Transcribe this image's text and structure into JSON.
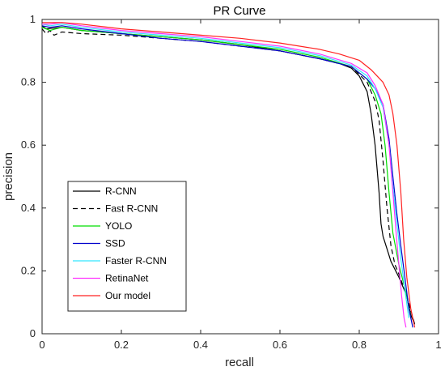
{
  "chart_data": {
    "type": "line",
    "title": "PR Curve",
    "xlabel": "recall",
    "ylabel": "precision",
    "xlim": [
      0,
      1
    ],
    "ylim": [
      0,
      1
    ],
    "xticks": [
      "0",
      "0.2",
      "0.4",
      "0.6",
      "0.8",
      "1"
    ],
    "yticks": [
      "0",
      "0.2",
      "0.4",
      "0.6",
      "0.8",
      "1"
    ],
    "grid": false,
    "legend_position": "bottom-left",
    "series": [
      {
        "name": "R-CNN",
        "color": "#000000",
        "dash": "solid",
        "points": [
          [
            0,
            0.98
          ],
          [
            0.01,
            0.97
          ],
          [
            0.05,
            0.975
          ],
          [
            0.1,
            0.965
          ],
          [
            0.2,
            0.955
          ],
          [
            0.3,
            0.945
          ],
          [
            0.4,
            0.935
          ],
          [
            0.5,
            0.92
          ],
          [
            0.6,
            0.9
          ],
          [
            0.7,
            0.875
          ],
          [
            0.75,
            0.86
          ],
          [
            0.78,
            0.845
          ],
          [
            0.8,
            0.82
          ],
          [
            0.82,
            0.77
          ],
          [
            0.83,
            0.7
          ],
          [
            0.84,
            0.6
          ],
          [
            0.85,
            0.45
          ],
          [
            0.855,
            0.35
          ],
          [
            0.86,
            0.31
          ],
          [
            0.87,
            0.27
          ],
          [
            0.88,
            0.23
          ],
          [
            0.9,
            0.18
          ],
          [
            0.92,
            0.12
          ],
          [
            0.93,
            0.06
          ],
          [
            0.94,
            0.03
          ]
        ]
      },
      {
        "name": "Fast R-CNN",
        "color": "#000000",
        "dash": "dashed",
        "points": [
          [
            0,
            0.97
          ],
          [
            0.01,
            0.955
          ],
          [
            0.02,
            0.965
          ],
          [
            0.03,
            0.95
          ],
          [
            0.05,
            0.96
          ],
          [
            0.1,
            0.955
          ],
          [
            0.2,
            0.95
          ],
          [
            0.3,
            0.94
          ],
          [
            0.4,
            0.93
          ],
          [
            0.5,
            0.915
          ],
          [
            0.6,
            0.9
          ],
          [
            0.7,
            0.875
          ],
          [
            0.78,
            0.85
          ],
          [
            0.82,
            0.8
          ],
          [
            0.84,
            0.74
          ],
          [
            0.85,
            0.68
          ],
          [
            0.86,
            0.55
          ],
          [
            0.87,
            0.4
          ],
          [
            0.88,
            0.28
          ],
          [
            0.89,
            0.22
          ],
          [
            0.9,
            0.19
          ],
          [
            0.92,
            0.12
          ],
          [
            0.94,
            0.03
          ]
        ]
      },
      {
        "name": "YOLO",
        "color": "#00dd00",
        "dash": "solid",
        "points": [
          [
            0,
            0.975
          ],
          [
            0.02,
            0.965
          ],
          [
            0.05,
            0.975
          ],
          [
            0.1,
            0.965
          ],
          [
            0.2,
            0.955
          ],
          [
            0.3,
            0.945
          ],
          [
            0.4,
            0.935
          ],
          [
            0.5,
            0.92
          ],
          [
            0.6,
            0.905
          ],
          [
            0.7,
            0.88
          ],
          [
            0.78,
            0.85
          ],
          [
            0.82,
            0.81
          ],
          [
            0.84,
            0.76
          ],
          [
            0.855,
            0.7
          ],
          [
            0.865,
            0.6
          ],
          [
            0.875,
            0.45
          ],
          [
            0.885,
            0.32
          ],
          [
            0.9,
            0.22
          ],
          [
            0.92,
            0.12
          ],
          [
            0.93,
            0.05
          ]
        ]
      },
      {
        "name": "SSD",
        "color": "#0000cc",
        "dash": "solid",
        "points": [
          [
            0,
            0.98
          ],
          [
            0.02,
            0.975
          ],
          [
            0.05,
            0.98
          ],
          [
            0.1,
            0.97
          ],
          [
            0.2,
            0.955
          ],
          [
            0.3,
            0.94
          ],
          [
            0.4,
            0.93
          ],
          [
            0.5,
            0.915
          ],
          [
            0.6,
            0.9
          ],
          [
            0.7,
            0.875
          ],
          [
            0.78,
            0.85
          ],
          [
            0.82,
            0.81
          ],
          [
            0.84,
            0.78
          ],
          [
            0.86,
            0.73
          ],
          [
            0.875,
            0.62
          ],
          [
            0.885,
            0.5
          ],
          [
            0.895,
            0.38
          ],
          [
            0.905,
            0.28
          ],
          [
            0.915,
            0.18
          ],
          [
            0.925,
            0.08
          ],
          [
            0.935,
            0.02
          ]
        ]
      },
      {
        "name": "Faster R-CNN",
        "color": "#33e6ff",
        "dash": "solid",
        "points": [
          [
            0,
            0.985
          ],
          [
            0.02,
            0.98
          ],
          [
            0.05,
            0.985
          ],
          [
            0.1,
            0.975
          ],
          [
            0.2,
            0.96
          ],
          [
            0.3,
            0.95
          ],
          [
            0.4,
            0.94
          ],
          [
            0.5,
            0.925
          ],
          [
            0.6,
            0.91
          ],
          [
            0.7,
            0.885
          ],
          [
            0.78,
            0.855
          ],
          [
            0.82,
            0.82
          ],
          [
            0.84,
            0.78
          ],
          [
            0.86,
            0.72
          ],
          [
            0.875,
            0.6
          ],
          [
            0.885,
            0.47
          ],
          [
            0.895,
            0.35
          ],
          [
            0.905,
            0.24
          ],
          [
            0.915,
            0.14
          ],
          [
            0.925,
            0.05
          ]
        ]
      },
      {
        "name": "RetinaNet",
        "color": "#ff33ff",
        "dash": "solid",
        "points": [
          [
            0,
            0.985
          ],
          [
            0.02,
            0.985
          ],
          [
            0.05,
            0.99
          ],
          [
            0.1,
            0.98
          ],
          [
            0.2,
            0.965
          ],
          [
            0.3,
            0.955
          ],
          [
            0.4,
            0.945
          ],
          [
            0.5,
            0.93
          ],
          [
            0.6,
            0.915
          ],
          [
            0.7,
            0.89
          ],
          [
            0.78,
            0.86
          ],
          [
            0.82,
            0.83
          ],
          [
            0.84,
            0.79
          ],
          [
            0.86,
            0.73
          ],
          [
            0.875,
            0.6
          ],
          [
            0.885,
            0.45
          ],
          [
            0.893,
            0.32
          ],
          [
            0.9,
            0.22
          ],
          [
            0.907,
            0.12
          ],
          [
            0.913,
            0.05
          ],
          [
            0.918,
            0.02
          ]
        ]
      },
      {
        "name": "Our model",
        "color": "#ff2222",
        "dash": "solid",
        "points": [
          [
            0,
            0.99
          ],
          [
            0.02,
            0.99
          ],
          [
            0.05,
            0.99
          ],
          [
            0.1,
            0.985
          ],
          [
            0.2,
            0.97
          ],
          [
            0.3,
            0.96
          ],
          [
            0.4,
            0.95
          ],
          [
            0.5,
            0.94
          ],
          [
            0.6,
            0.925
          ],
          [
            0.7,
            0.905
          ],
          [
            0.75,
            0.89
          ],
          [
            0.8,
            0.87
          ],
          [
            0.83,
            0.84
          ],
          [
            0.86,
            0.8
          ],
          [
            0.875,
            0.76
          ],
          [
            0.885,
            0.7
          ],
          [
            0.895,
            0.6
          ],
          [
            0.905,
            0.45
          ],
          [
            0.912,
            0.3
          ],
          [
            0.92,
            0.18
          ],
          [
            0.93,
            0.08
          ],
          [
            0.94,
            0.02
          ]
        ]
      }
    ]
  }
}
